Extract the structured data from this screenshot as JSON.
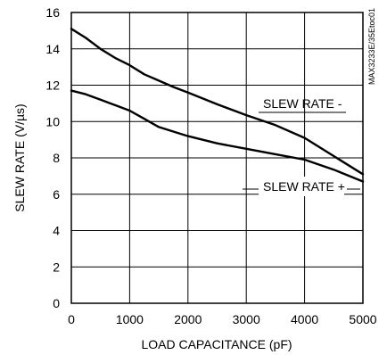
{
  "chart_data": {
    "type": "line",
    "xlabel": "LOAD CAPACITANCE (pF)",
    "ylabel": "SLEW RATE (V/µs)",
    "xlim": [
      0,
      5000
    ],
    "ylim": [
      0,
      16
    ],
    "xticks": [
      "0",
      "1000",
      "2000",
      "3000",
      "4000",
      "5000"
    ],
    "yticks": [
      "0",
      "2",
      "4",
      "6",
      "8",
      "10",
      "12",
      "14",
      "16"
    ],
    "grid": true,
    "series": [
      {
        "name": "SLEW RATE -",
        "x": [
          0,
          250,
          500,
          750,
          1000,
          1250,
          1500,
          1750,
          2000,
          2500,
          3000,
          3500,
          4000,
          4500,
          5000
        ],
        "y": [
          15.1,
          14.6,
          14.0,
          13.5,
          13.1,
          12.6,
          12.25,
          11.9,
          11.6,
          10.95,
          10.35,
          9.8,
          9.1,
          8.1,
          7.1
        ]
      },
      {
        "name": "SLEW RATE +",
        "x": [
          0,
          250,
          500,
          750,
          1000,
          1250,
          1500,
          1750,
          2000,
          2500,
          3000,
          3500,
          4000,
          4500,
          5000
        ],
        "y": [
          11.7,
          11.5,
          11.2,
          10.9,
          10.6,
          10.15,
          9.7,
          9.45,
          9.2,
          8.8,
          8.5,
          8.2,
          7.9,
          7.35,
          6.7
        ]
      }
    ]
  },
  "reference_id": "MAX3233E/35Etoc01"
}
